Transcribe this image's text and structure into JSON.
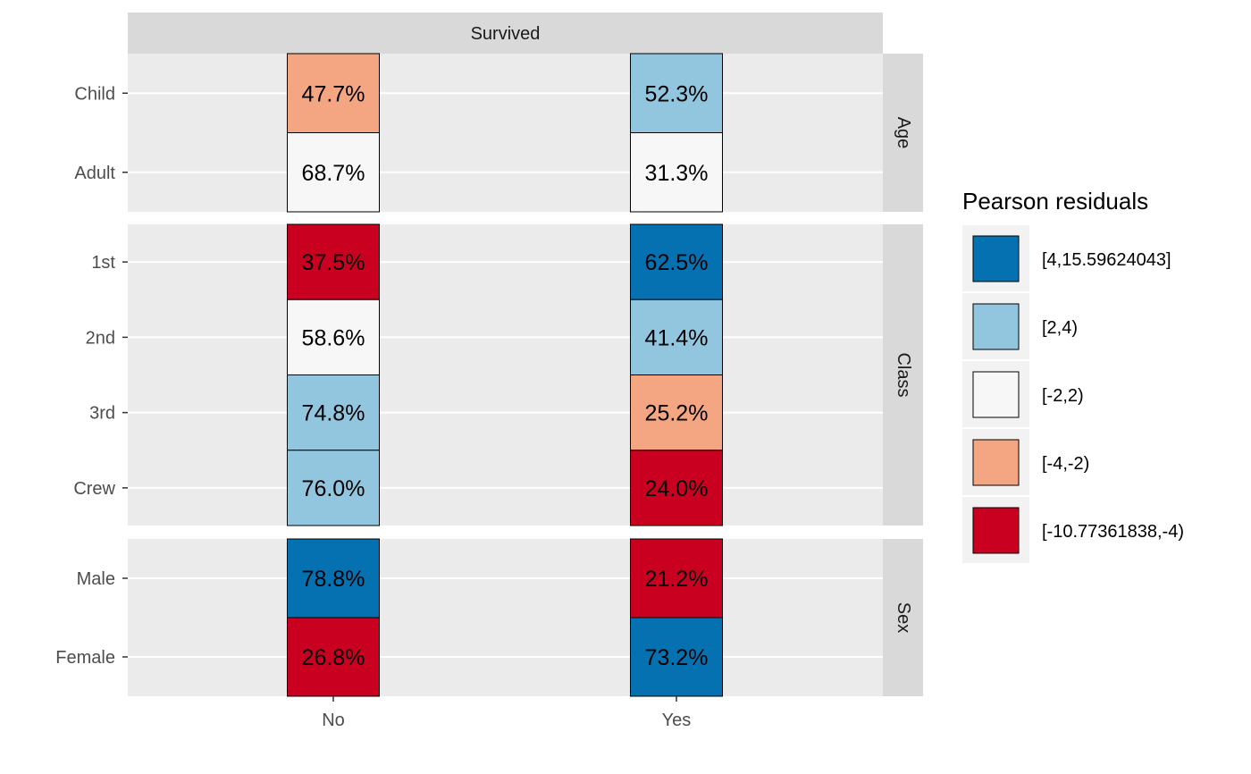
{
  "chart_data": {
    "type": "heatmap",
    "top_strip": "Survived",
    "columns": [
      "No",
      "Yes"
    ],
    "panels": [
      {
        "name": "Age",
        "rows": [
          "Child",
          "Adult"
        ],
        "cells": [
          {
            "row": "Child",
            "col": "No",
            "label": "47.7%",
            "value": 47.7,
            "bin": "[-4,-2)"
          },
          {
            "row": "Child",
            "col": "Yes",
            "label": "52.3%",
            "value": 52.3,
            "bin": "[2,4)"
          },
          {
            "row": "Adult",
            "col": "No",
            "label": "68.7%",
            "value": 68.7,
            "bin": "[-2,2)"
          },
          {
            "row": "Adult",
            "col": "Yes",
            "label": "31.3%",
            "value": 31.3,
            "bin": "[-2,2)"
          }
        ]
      },
      {
        "name": "Class",
        "rows": [
          "1st",
          "2nd",
          "3rd",
          "Crew"
        ],
        "cells": [
          {
            "row": "1st",
            "col": "No",
            "label": "37.5%",
            "value": 37.5,
            "bin": "[-10.77361838,-4)"
          },
          {
            "row": "1st",
            "col": "Yes",
            "label": "62.5%",
            "value": 62.5,
            "bin": "[4,15.59624043]"
          },
          {
            "row": "2nd",
            "col": "No",
            "label": "58.6%",
            "value": 58.6,
            "bin": "[-2,2)"
          },
          {
            "row": "2nd",
            "col": "Yes",
            "label": "41.4%",
            "value": 41.4,
            "bin": "[2,4)"
          },
          {
            "row": "3rd",
            "col": "No",
            "label": "74.8%",
            "value": 74.8,
            "bin": "[2,4)"
          },
          {
            "row": "3rd",
            "col": "Yes",
            "label": "25.2%",
            "value": 25.2,
            "bin": "[-4,-2)"
          },
          {
            "row": "Crew",
            "col": "No",
            "label": "76.0%",
            "value": 76.0,
            "bin": "[2,4)"
          },
          {
            "row": "Crew",
            "col": "Yes",
            "label": "24.0%",
            "value": 24.0,
            "bin": "[-10.77361838,-4)"
          }
        ]
      },
      {
        "name": "Sex",
        "rows": [
          "Male",
          "Female"
        ],
        "cells": [
          {
            "row": "Male",
            "col": "No",
            "label": "78.8%",
            "value": 78.8,
            "bin": "[4,15.59624043]"
          },
          {
            "row": "Male",
            "col": "Yes",
            "label": "21.2%",
            "value": 21.2,
            "bin": "[-10.77361838,-4)"
          },
          {
            "row": "Female",
            "col": "No",
            "label": "26.8%",
            "value": 26.8,
            "bin": "[-10.77361838,-4)"
          },
          {
            "row": "Female",
            "col": "Yes",
            "label": "73.2%",
            "value": 73.2,
            "bin": "[4,15.59624043]"
          }
        ]
      }
    ],
    "legend": {
      "title": "Pearson residuals",
      "position": "right",
      "entries": [
        {
          "label": "[4,15.59624043]",
          "color": "#0571b0"
        },
        {
          "label": "[2,4)",
          "color": "#92c5de"
        },
        {
          "label": "[-2,2)",
          "color": "#f7f7f7"
        },
        {
          "label": "[-4,-2)",
          "color": "#f4a582"
        },
        {
          "label": "[-10.77361838,-4)",
          "color": "#ca0020"
        }
      ]
    },
    "grid": true
  }
}
